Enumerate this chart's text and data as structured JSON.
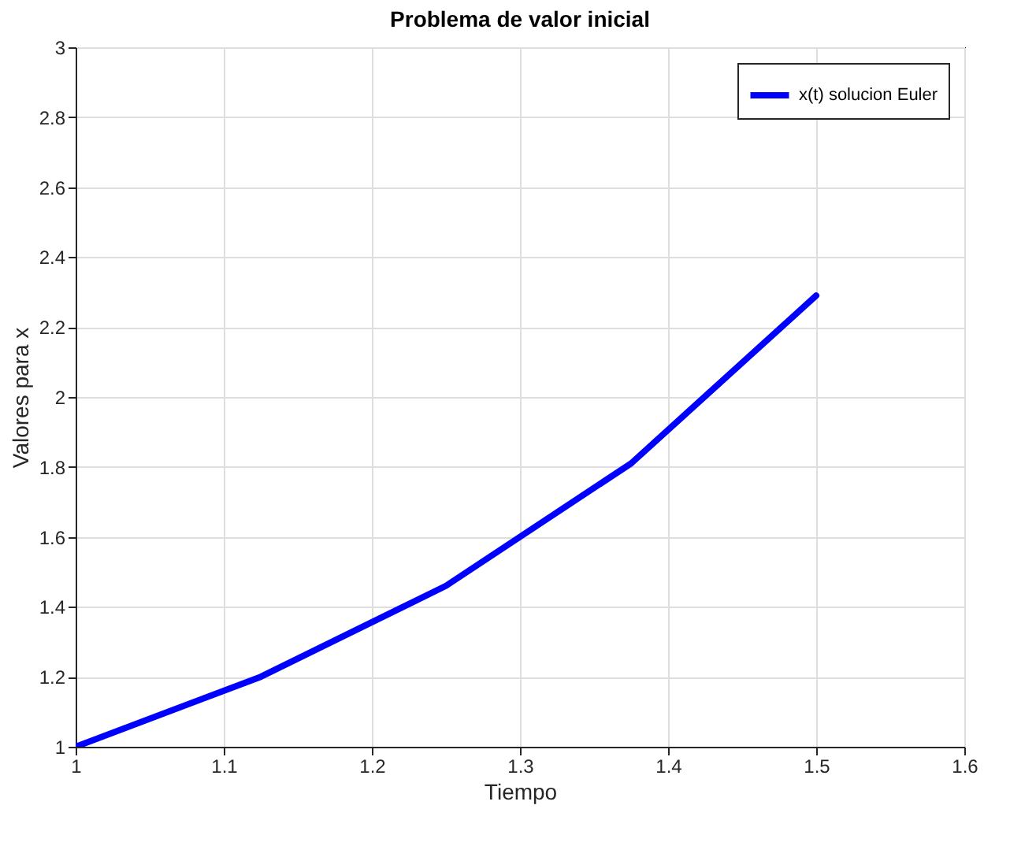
{
  "chart_data": {
    "type": "line",
    "title": "Problema de valor inicial",
    "xlabel": "Tiempo",
    "ylabel": "Valores para x",
    "x": [
      1,
      1.125,
      1.25,
      1.375,
      1.5
    ],
    "series": [
      {
        "name": "x(t) solucion Euler",
        "color": "#0000ff",
        "values": [
          1.0,
          1.2,
          1.46,
          1.81,
          2.29
        ]
      }
    ],
    "xlim": [
      1,
      1.6
    ],
    "xticks": [
      1,
      1.1,
      1.2,
      1.3,
      1.4,
      1.5,
      1.6
    ],
    "ylim": [
      1,
      3
    ],
    "yticks": [
      1,
      1.2,
      1.4,
      1.6,
      1.8,
      2,
      2.2,
      2.4,
      2.6,
      2.8,
      3
    ],
    "grid": true,
    "legend": "top right",
    "line_style": "solid",
    "marker": "none"
  }
}
